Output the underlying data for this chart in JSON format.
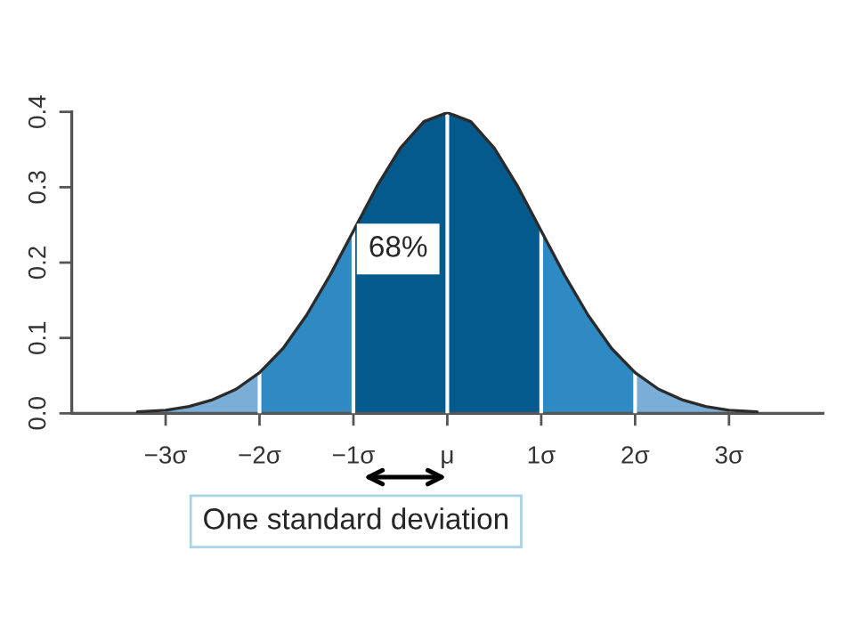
{
  "chart_data": {
    "type": "area",
    "xlim": [
      -4,
      4
    ],
    "ylim": [
      0,
      0.4
    ],
    "xticks": [
      {
        "value": -3,
        "label": "−3σ"
      },
      {
        "value": -2,
        "label": "−2σ"
      },
      {
        "value": -1,
        "label": "−1σ"
      },
      {
        "value": 0,
        "label": "μ"
      },
      {
        "value": 1,
        "label": "1σ"
      },
      {
        "value": 2,
        "label": "2σ"
      },
      {
        "value": 3,
        "label": "3σ"
      }
    ],
    "yticks": [
      {
        "value": 0,
        "label": "0.0"
      },
      {
        "value": 0.1,
        "label": "0.1"
      },
      {
        "value": 0.2,
        "label": "0.2"
      },
      {
        "value": 0.3,
        "label": "0.3"
      },
      {
        "value": 0.4,
        "label": "0.4"
      }
    ],
    "grid": false,
    "legend": false,
    "series": [
      {
        "type": "area",
        "color": "#7aaed6",
        "x": [
          -3,
          -2.75,
          -2.5,
          -2.25,
          -2
        ],
        "values": [
          0.004,
          0.009,
          0.018,
          0.032,
          0.054
        ]
      },
      {
        "type": "area",
        "color": "#2f8ac4",
        "x": [
          -2,
          -1.75,
          -1.5,
          -1.25,
          -1
        ],
        "values": [
          0.054,
          0.086,
          0.13,
          0.183,
          0.242
        ]
      },
      {
        "type": "area",
        "color": "#045a8d",
        "x": [
          -1,
          -0.75,
          -0.5,
          -0.25,
          0,
          0.25,
          0.5,
          0.75,
          1
        ],
        "values": [
          0.242,
          0.301,
          0.352,
          0.387,
          0.399,
          0.387,
          0.352,
          0.301,
          0.242
        ]
      },
      {
        "type": "area",
        "color": "#2f8ac4",
        "x": [
          1,
          1.25,
          1.5,
          1.75,
          2
        ],
        "values": [
          0.242,
          0.183,
          0.13,
          0.086,
          0.054
        ]
      },
      {
        "type": "area",
        "color": "#7aaed6",
        "x": [
          2,
          2.25,
          2.5,
          2.75,
          3
        ],
        "values": [
          0.054,
          0.032,
          0.018,
          0.009,
          0.004
        ]
      },
      {
        "type": "line",
        "color": "#2b2b2b",
        "x": [
          -3.3,
          -3,
          -2.75,
          -2.5,
          -2.25,
          -2,
          -1.75,
          -1.5,
          -1.25,
          -1,
          -0.75,
          -0.5,
          -0.25,
          0,
          0.25,
          0.5,
          0.75,
          1,
          1.25,
          1.5,
          1.75,
          2,
          2.25,
          2.5,
          2.75,
          3,
          3.3
        ],
        "values": [
          0.002,
          0.004,
          0.009,
          0.018,
          0.032,
          0.054,
          0.086,
          0.13,
          0.183,
          0.242,
          0.301,
          0.352,
          0.387,
          0.399,
          0.387,
          0.352,
          0.301,
          0.242,
          0.183,
          0.13,
          0.086,
          0.054,
          0.032,
          0.018,
          0.009,
          0.004,
          0.002
        ]
      }
    ],
    "ref_lines": [
      {
        "axis": "x",
        "value": -2,
        "color": "#ffffff"
      },
      {
        "axis": "x",
        "value": -1,
        "color": "#ffffff"
      },
      {
        "axis": "x",
        "value": 0,
        "color": "#ffffff"
      },
      {
        "axis": "x",
        "value": 1,
        "color": "#ffffff"
      },
      {
        "axis": "x",
        "value": 2,
        "color": "#ffffff"
      }
    ],
    "annotations": [
      "68%",
      "One standard deviation"
    ]
  }
}
